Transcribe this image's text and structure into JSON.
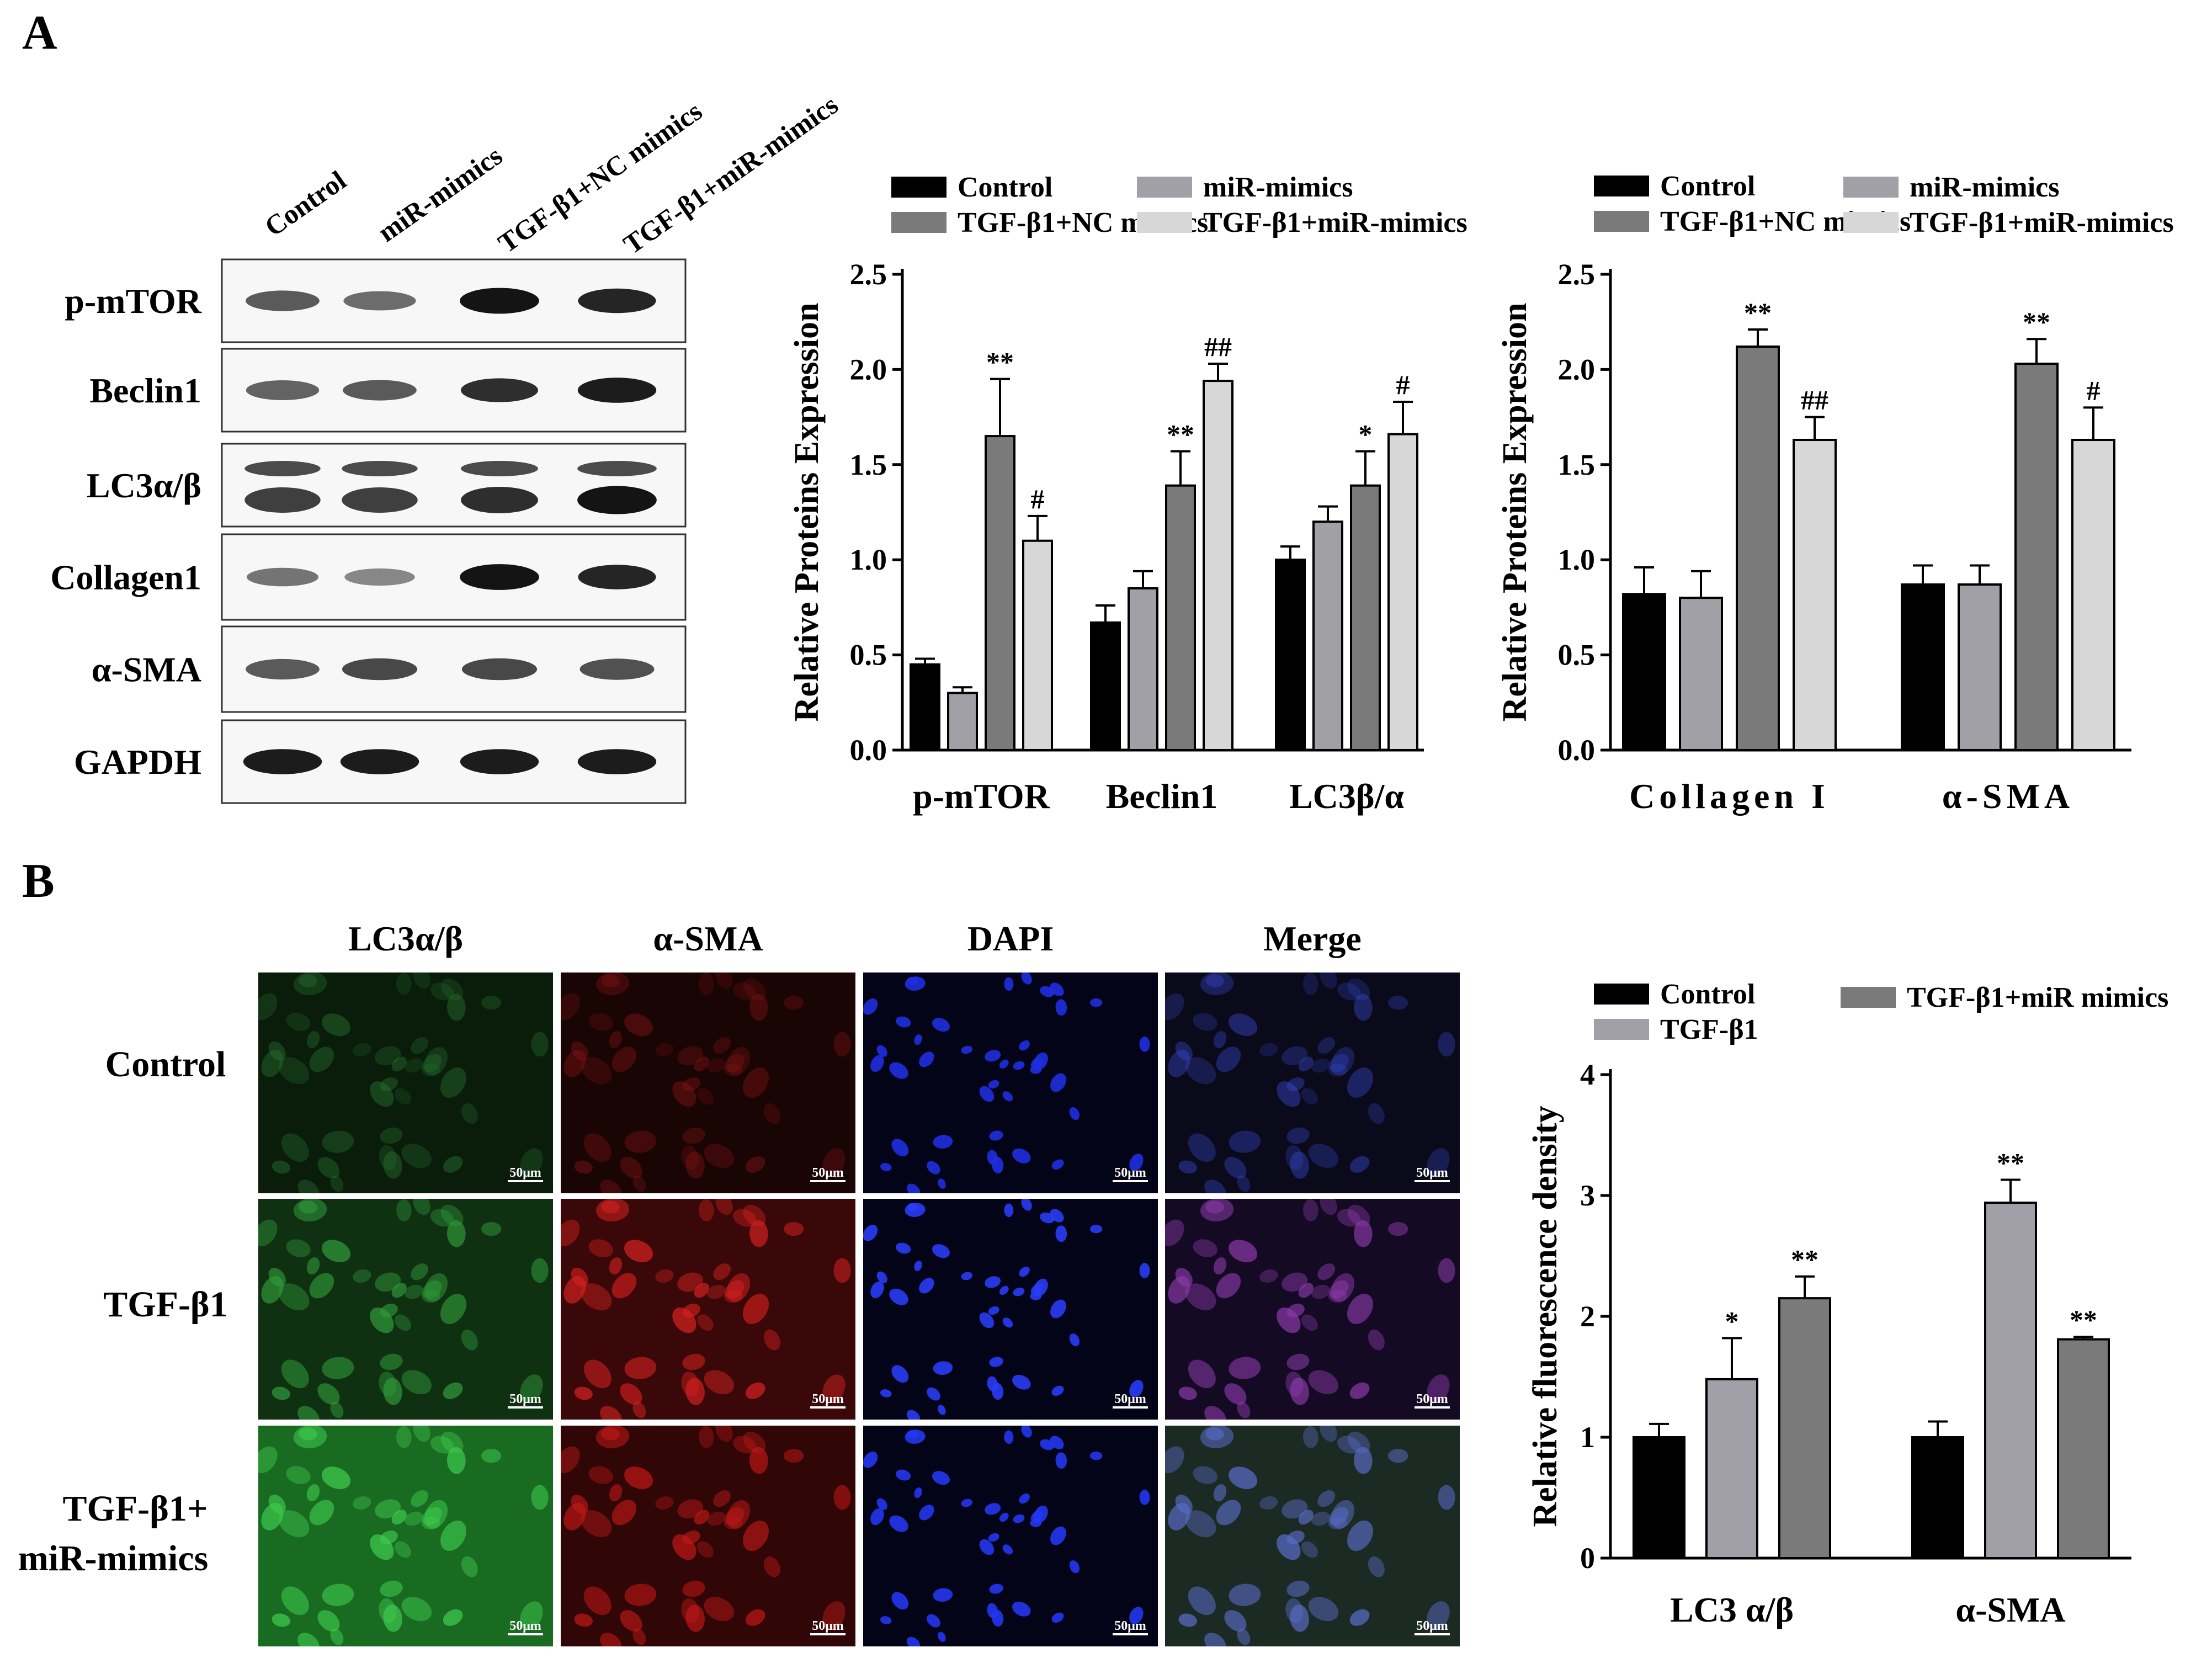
{
  "panel_a": {
    "letter": "A",
    "blot": {
      "lanes": [
        "Control",
        "miR-mimics",
        "TGF-β1+NC mimics",
        "TGF-β1+miR-mimics"
      ],
      "rows": [
        {
          "label": "p-mTOR",
          "intensity": [
            0.55,
            0.45,
            0.95,
            0.85
          ]
        },
        {
          "label": "Beclin1",
          "intensity": [
            0.5,
            0.55,
            0.8,
            0.9
          ]
        },
        {
          "label": "LC3α/β",
          "intensity": [
            0.7,
            0.7,
            0.8,
            0.95
          ]
        },
        {
          "label": "Collagen1",
          "intensity": [
            0.4,
            0.3,
            0.95,
            0.85
          ]
        },
        {
          "label": "α-SMA",
          "intensity": [
            0.55,
            0.65,
            0.65,
            0.6
          ]
        },
        {
          "label": "GAPDH",
          "intensity": [
            0.9,
            0.9,
            0.9,
            0.9
          ]
        }
      ]
    }
  },
  "panel_b": {
    "letter": "B",
    "columns": [
      "LC3α/β",
      "α-SMA",
      "DAPI",
      "Merge"
    ],
    "rows": [
      "Control",
      "TGF-β1",
      "TGF-β1+",
      "miR-mimics"
    ],
    "scale_bar": "50μm",
    "channel_colors": {
      "green": "#22b14c",
      "red": "#e32020",
      "blue": "#2d3cf0"
    }
  },
  "chart_data": [
    {
      "type": "bar",
      "ylabel": "Relative Proteins Expression",
      "ylim": [
        0,
        2.5
      ],
      "yticks": [
        "0.0",
        "0.5",
        "1.0",
        "1.5",
        "2.0",
        "2.5"
      ],
      "categories": [
        "p-mTOR",
        "Beclin1",
        "LC3β/α"
      ],
      "legend": "top",
      "series": [
        {
          "name": "Control",
          "color": "#000000",
          "values": [
            0.45,
            0.67,
            1.0
          ],
          "errors": [
            0.03,
            0.09,
            0.07
          ],
          "sig": [
            "",
            "",
            ""
          ]
        },
        {
          "name": "miR-mimics",
          "color": "#a0a0a6",
          "values": [
            0.3,
            0.85,
            1.2
          ],
          "errors": [
            0.03,
            0.09,
            0.08
          ],
          "sig": [
            "",
            "",
            ""
          ]
        },
        {
          "name": "TGF-β1+NC mimics",
          "color": "#7a7a7a",
          "values": [
            1.65,
            1.39,
            1.39
          ],
          "errors": [
            0.3,
            0.18,
            0.18
          ],
          "sig": [
            "**",
            "**",
            "*"
          ]
        },
        {
          "name": "TGF-β1+miR-mimics",
          "color": "#d7d7d7",
          "values": [
            1.1,
            1.94,
            1.66
          ],
          "errors": [
            0.13,
            0.09,
            0.17
          ],
          "sig": [
            "#",
            "##",
            "#"
          ]
        }
      ]
    },
    {
      "type": "bar",
      "ylabel": "Relative Proteins Expression",
      "ylim": [
        0,
        2.5
      ],
      "yticks": [
        "0.0",
        "0.5",
        "1.0",
        "1.5",
        "2.0",
        "2.5"
      ],
      "categories": [
        "Collagen I",
        "α-SMA"
      ],
      "legend": "top",
      "series": [
        {
          "name": "Control",
          "color": "#000000",
          "values": [
            0.82,
            0.87
          ],
          "errors": [
            0.14,
            0.1
          ],
          "sig": [
            "",
            ""
          ]
        },
        {
          "name": "miR-mimics",
          "color": "#a0a0a6",
          "values": [
            0.8,
            0.87
          ],
          "errors": [
            0.14,
            0.1
          ],
          "sig": [
            "",
            ""
          ]
        },
        {
          "name": "TGF-β1+NC mimics",
          "color": "#7a7a7a",
          "values": [
            2.12,
            2.03
          ],
          "errors": [
            0.09,
            0.13
          ],
          "sig": [
            "**",
            "**"
          ]
        },
        {
          "name": "TGF-β1+miR-mimics",
          "color": "#d7d7d7",
          "values": [
            1.63,
            1.63
          ],
          "errors": [
            0.12,
            0.17
          ],
          "sig": [
            "##",
            "#"
          ]
        }
      ]
    },
    {
      "type": "bar",
      "ylabel": "Relative fluorescence density",
      "ylim": [
        0,
        4
      ],
      "yticks": [
        "0",
        "1",
        "2",
        "3",
        "4"
      ],
      "categories": [
        "LC3 α/β",
        "α-SMA"
      ],
      "legend": "top",
      "series": [
        {
          "name": "Control",
          "color": "#000000",
          "values": [
            1.0,
            1.0
          ],
          "errors": [
            0.11,
            0.13
          ],
          "sig": [
            "",
            ""
          ]
        },
        {
          "name": "TGF-β1",
          "color": "#a0a0a6",
          "values": [
            1.48,
            2.94
          ],
          "errors": [
            0.34,
            0.19
          ],
          "sig": [
            "*",
            "**"
          ]
        },
        {
          "name": "TGF-β1+miR mimics",
          "color": "#7a7a7a",
          "values": [
            2.15,
            1.81
          ],
          "errors": [
            0.18,
            0.02
          ],
          "sig": [
            "**",
            "**"
          ]
        }
      ]
    }
  ]
}
